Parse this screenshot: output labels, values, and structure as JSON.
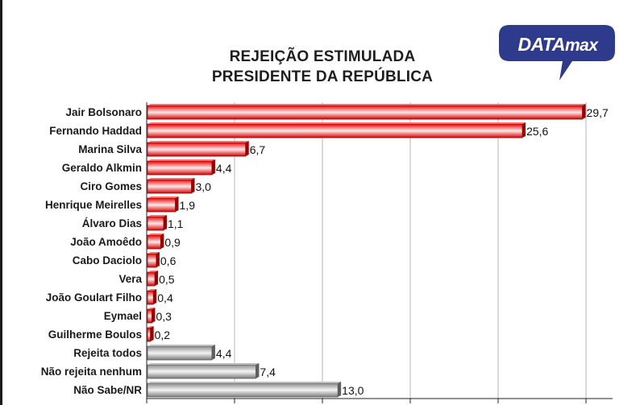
{
  "header": {
    "title_line1": "REJEIÇÃO ESTIMULADA",
    "title_line2": "PRESIDENTE DA REPÚBLICA",
    "logo_text": "DATAmax",
    "logo_color": "#2e3a8c"
  },
  "chart_data": {
    "type": "bar",
    "orientation": "horizontal",
    "title": "REJEIÇÃO ESTIMULADA PRESIDENTE DA REPÚBLICA",
    "categories": [
      "Jair Bolsonaro",
      "Fernando Haddad",
      "Marina Silva",
      "Geraldo Alkmin",
      "Ciro Gomes",
      "Henrique Meirelles",
      "Álvaro Dias",
      "João Amoêdo",
      "Cabo Daciolo",
      "Vera",
      "João Goulart Filho",
      "Eymael",
      "Guilherme Boulos",
      "Rejeita todos",
      "Não rejeita nenhum",
      "Não Sabe/NR"
    ],
    "values": [
      29.7,
      25.6,
      6.7,
      4.4,
      3.0,
      1.9,
      1.1,
      0.9,
      0.6,
      0.5,
      0.4,
      0.3,
      0.2,
      4.4,
      7.4,
      13.0
    ],
    "value_labels": [
      "29,7",
      "25,6",
      "6,7",
      "4,4",
      "3,0",
      "1,9",
      "1,1",
      "0,9",
      "0,6",
      "0,5",
      "0,4",
      "0,3",
      "0,2",
      "4,4",
      "7,4",
      "13,0"
    ],
    "bar_colors": [
      "red",
      "red",
      "red",
      "red",
      "red",
      "red",
      "red",
      "red",
      "red",
      "red",
      "red",
      "red",
      "red",
      "gray",
      "gray",
      "gray"
    ],
    "xlim": [
      0,
      30
    ],
    "gridlines": [
      0,
      6,
      12,
      18,
      24,
      30
    ],
    "grid": true,
    "legend": "none",
    "xlabel": "",
    "ylabel": ""
  },
  "colors": {
    "red_dark": "#d40000",
    "red_light": "#ffffff",
    "gray_dark": "#808080",
    "gray_light": "#f2f2f2"
  }
}
